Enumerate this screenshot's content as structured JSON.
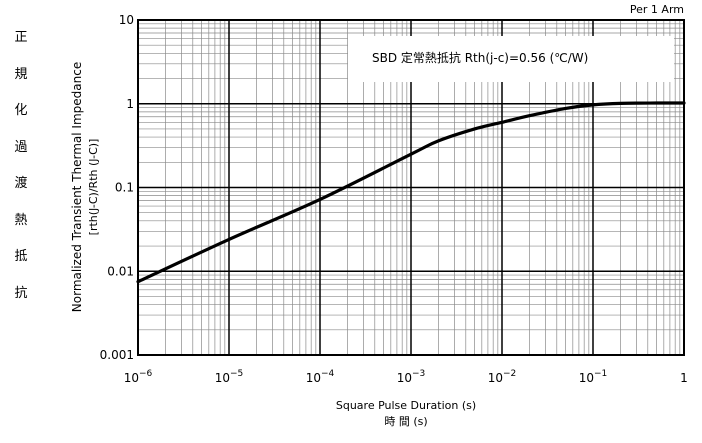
{
  "chart_data": {
    "type": "line",
    "corner_note": "Per 1 Arm",
    "annotation": "SBD  定常熱抵抗  Rth(j-c)=0.56 (℃/W)",
    "ylabel_jp_chars": [
      "正",
      "規",
      "化",
      "過",
      "渡",
      "熱",
      "抵",
      "抗"
    ],
    "ylabel_line1": "Normalized Transient Thermal Impedance",
    "ylabel_line2": "[rth(J-C)/Rth (J-C)]",
    "xlabel_line1": "Square Pulse Duration (s)",
    "xlabel_line2": "時 間 (s)",
    "x_scale": "log",
    "y_scale": "log",
    "xlim": [
      1e-06,
      1
    ],
    "ylim": [
      0.001,
      10
    ],
    "x_tick_labels": [
      {
        "base": "10",
        "exp": "−6"
      },
      {
        "base": "10",
        "exp": "−5"
      },
      {
        "base": "10",
        "exp": "−4"
      },
      {
        "base": "10",
        "exp": "−3"
      },
      {
        "base": "10",
        "exp": "−2"
      },
      {
        "base": "10",
        "exp": "−1"
      },
      {
        "base": "1",
        "exp": ""
      }
    ],
    "y_tick_labels": [
      "0.001",
      "0.01",
      "0.1",
      "1",
      "10"
    ],
    "grid": true,
    "series": [
      {
        "x": [
          1e-06,
          1e-05,
          0.0001,
          0.001,
          0.002,
          0.005,
          0.01,
          0.02,
          0.05,
          0.1,
          0.2,
          0.5,
          1
        ],
        "y": [
          0.0075,
          0.024,
          0.072,
          0.25,
          0.36,
          0.5,
          0.6,
          0.72,
          0.88,
          0.97,
          1.01,
          1.02,
          1.02
        ]
      }
    ]
  }
}
